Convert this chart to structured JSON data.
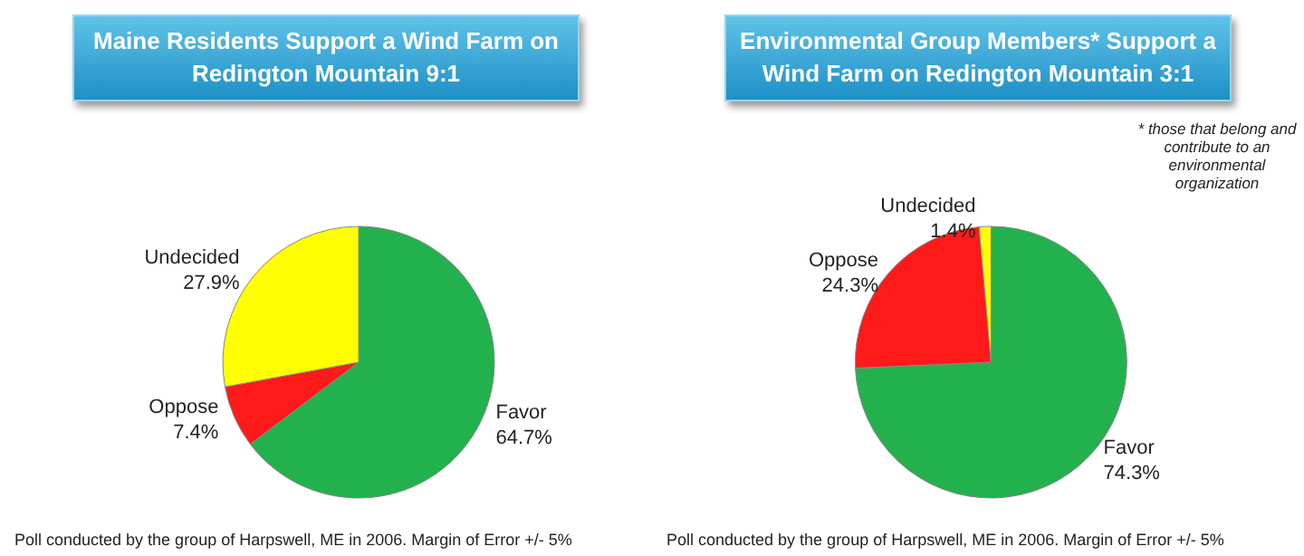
{
  "chart_data": [
    {
      "type": "pie",
      "title": "Maine Residents Support a Wind Farm on Redington Mountain 9:1",
      "categories": [
        "Favor",
        "Oppose",
        "Undecided"
      ],
      "values": [
        64.7,
        7.4,
        27.9
      ],
      "value_labels": [
        "64.7%",
        "7.4%",
        "27.9%"
      ],
      "colors": [
        "#22b14c",
        "#ff1a1a",
        "#ffff00"
      ],
      "legend": false,
      "annotations": [
        "Poll conducted by the group of Harpswell, ME in 2006. Margin of Error +/- 5%"
      ]
    },
    {
      "type": "pie",
      "title": "Environmental Group Members* Support a Wind Farm on Redington Mountain 3:1",
      "categories": [
        "Favor",
        "Oppose",
        "Undecided"
      ],
      "values": [
        74.3,
        24.3,
        1.4
      ],
      "value_labels": [
        "74.3%",
        "24.3%",
        "1.4%"
      ],
      "colors": [
        "#22b14c",
        "#ff1a1a",
        "#ffff00"
      ],
      "legend": false,
      "annotations": [
        "* those that belong and contribute to an environmental organization",
        "Poll conducted by the group of Harpswell, ME in 2006. Margin of Error +/- 5%"
      ]
    }
  ]
}
